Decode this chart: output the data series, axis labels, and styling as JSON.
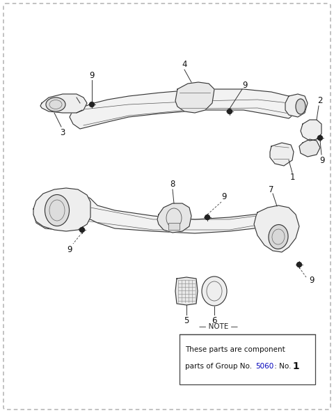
{
  "bg_color": "#ffffff",
  "line_color": "#333333",
  "fill_light": "#f5f5f5",
  "fill_mid": "#e8e8e8",
  "fill_dark": "#d8d8d8",
  "note_line1": "These parts are component",
  "note_line2": "parts of Group No.",
  "note_5060": "5060",
  "note_end": " : No.",
  "note_num": " 1"
}
